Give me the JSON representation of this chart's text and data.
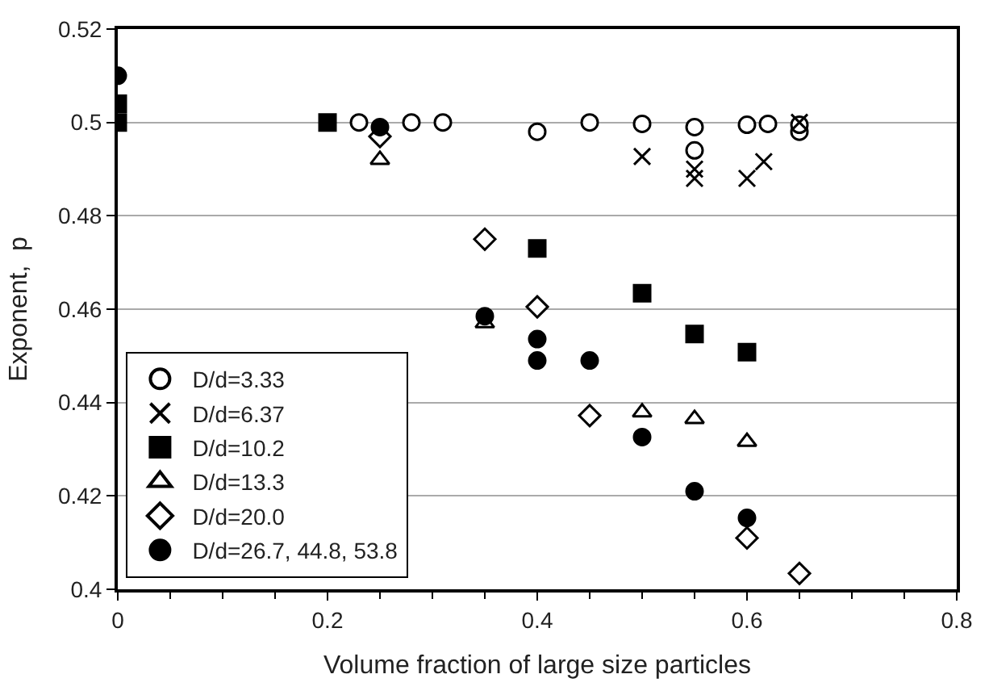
{
  "chart_data": {
    "type": "scatter",
    "xlabel": "Volume fraction of large size particles",
    "ylabel": "Exponent,  p",
    "xlim": [
      0,
      0.8
    ],
    "xticks": [
      0,
      0.2,
      0.4,
      0.6,
      0.8
    ],
    "ylim": [
      0.4,
      0.52
    ],
    "yticks": [
      0.4,
      0.42,
      0.44,
      0.46,
      0.48,
      0.5,
      0.52
    ],
    "grid": "y",
    "legend": "bottom left",
    "series": [
      {
        "name": "D/d=3.33",
        "color": "#ffffff",
        "marker": "circle",
        "x": [
          0.23,
          0.28,
          0.31,
          0.4,
          0.45,
          0.5,
          0.55,
          0.55,
          0.6,
          0.62,
          0.65,
          0.65
        ],
        "values": [
          0.5,
          0.5,
          0.5,
          0.498,
          0.5,
          0.4997,
          0.499,
          0.494,
          0.4995,
          0.4997,
          0.498,
          0.4995
        ]
      },
      {
        "name": "D/d=6.37",
        "color": "#000000",
        "marker": "cross",
        "x": [
          0.5,
          0.55,
          0.55,
          0.6,
          0.616,
          0.65
        ],
        "values": [
          0.4927,
          0.49,
          0.488,
          0.488,
          0.4916,
          0.5
        ]
      },
      {
        "name": "D/d=10.2",
        "color": "#000000",
        "marker": "square",
        "x": [
          0,
          0,
          0.2,
          0.4,
          0.5,
          0.55,
          0.6
        ],
        "values": [
          0.504,
          0.5,
          0.5,
          0.473,
          0.4634,
          0.4547,
          0.4508
        ]
      },
      {
        "name": "D/d=13.3",
        "color": "#ffffff",
        "marker": "triangle",
        "x": [
          0.25,
          0.35,
          0.5,
          0.55,
          0.6
        ],
        "values": [
          0.492,
          0.457,
          0.4379,
          0.4365,
          0.4316
        ]
      },
      {
        "name": "D/d=20.0",
        "color": "#ffffff",
        "marker": "diamond",
        "x": [
          0.25,
          0.35,
          0.4,
          0.45,
          0.6,
          0.65
        ],
        "values": [
          0.497,
          0.475,
          0.4605,
          0.4372,
          0.411,
          0.4034
        ]
      },
      {
        "name": "D/d=26.7, 44.8, 53.8",
        "color": "#000000",
        "marker": "circle",
        "x": [
          0,
          0.25,
          0.35,
          0.4,
          0.4,
          0.45,
          0.5,
          0.55,
          0.6
        ],
        "values": [
          0.51,
          0.499,
          0.4585,
          0.4536,
          0.449,
          0.449,
          0.4326,
          0.421,
          0.4153
        ]
      }
    ]
  }
}
